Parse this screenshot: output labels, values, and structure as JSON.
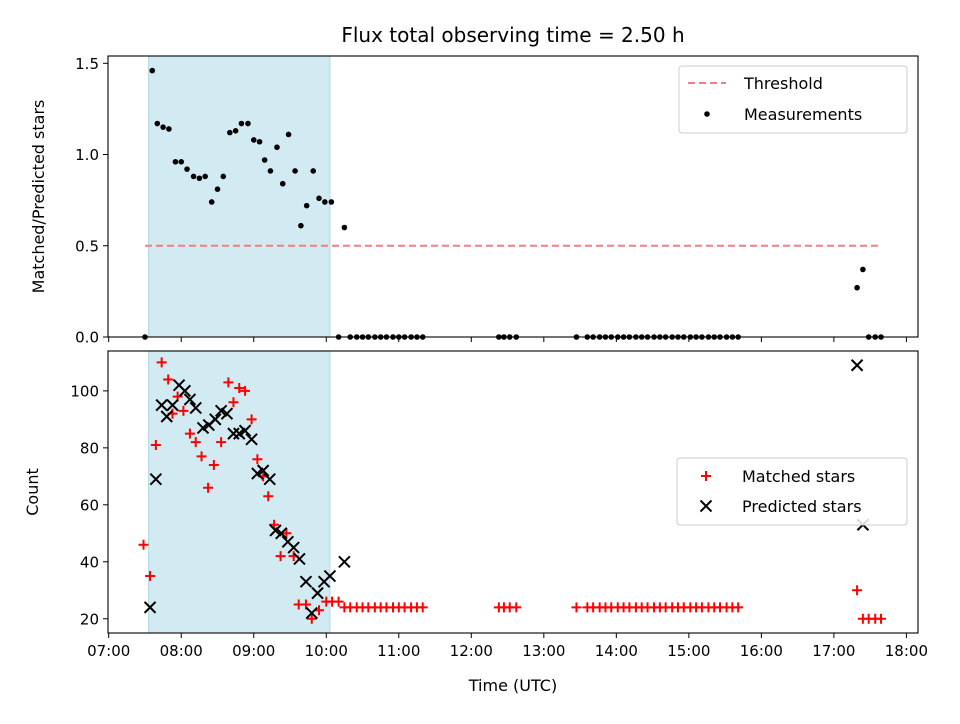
{
  "chart_data": [
    {
      "type": "scatter",
      "title": "Flux total observing time = 2.50 h",
      "xlabel": "",
      "ylabel": "Matched/Predicted stars",
      "xlim": [
        6.99,
        18.16
      ],
      "ylim": [
        0,
        1.54
      ],
      "yticks": [
        "0.0",
        "0.5",
        "1.0",
        "1.5"
      ],
      "grid": false,
      "legend_position": "top-right",
      "shaded_region": {
        "x_start": 7.55,
        "x_end": 10.05,
        "color": "#add8e6"
      },
      "threshold": {
        "name": "Threshold",
        "y": 0.5,
        "x_start": 7.5,
        "x_end": 17.65,
        "color": "#f08080"
      },
      "series": [
        {
          "name": "Measurements",
          "color": "#000000",
          "points": [
            [
              7.5,
              0.0
            ],
            [
              7.6,
              1.46
            ],
            [
              7.67,
              1.17
            ],
            [
              7.75,
              1.15
            ],
            [
              7.83,
              1.14
            ],
            [
              7.92,
              0.96
            ],
            [
              8.0,
              0.96
            ],
            [
              8.08,
              0.92
            ],
            [
              8.17,
              0.88
            ],
            [
              8.25,
              0.87
            ],
            [
              8.33,
              0.88
            ],
            [
              8.42,
              0.74
            ],
            [
              8.5,
              0.81
            ],
            [
              8.58,
              0.88
            ],
            [
              8.67,
              1.12
            ],
            [
              8.75,
              1.13
            ],
            [
              8.83,
              1.17
            ],
            [
              8.92,
              1.17
            ],
            [
              9.0,
              1.08
            ],
            [
              9.08,
              1.07
            ],
            [
              9.15,
              0.97
            ],
            [
              9.23,
              0.91
            ],
            [
              9.32,
              1.04
            ],
            [
              9.4,
              0.84
            ],
            [
              9.48,
              1.11
            ],
            [
              9.57,
              0.91
            ],
            [
              9.65,
              0.61
            ],
            [
              9.73,
              0.72
            ],
            [
              9.82,
              0.91
            ],
            [
              9.9,
              0.76
            ],
            [
              9.98,
              0.74
            ],
            [
              10.07,
              0.74
            ],
            [
              10.17,
              0.0
            ],
            [
              10.25,
              0.6
            ],
            [
              10.33,
              0.0
            ],
            [
              10.42,
              0.0
            ],
            [
              10.5,
              0.0
            ],
            [
              10.58,
              0.0
            ],
            [
              10.67,
              0.0
            ],
            [
              10.75,
              0.0
            ],
            [
              10.83,
              0.0
            ],
            [
              10.92,
              0.0
            ],
            [
              11.0,
              0.0
            ],
            [
              11.08,
              0.0
            ],
            [
              11.17,
              0.0
            ],
            [
              11.25,
              0.0
            ],
            [
              11.33,
              0.0
            ],
            [
              12.38,
              0.0
            ],
            [
              12.45,
              0.0
            ],
            [
              12.53,
              0.0
            ],
            [
              12.62,
              0.0
            ],
            [
              13.45,
              0.0
            ],
            [
              13.6,
              0.0
            ],
            [
              13.68,
              0.0
            ],
            [
              13.77,
              0.0
            ],
            [
              13.85,
              0.0
            ],
            [
              13.93,
              0.0
            ],
            [
              14.02,
              0.0
            ],
            [
              14.1,
              0.0
            ],
            [
              14.18,
              0.0
            ],
            [
              14.27,
              0.0
            ],
            [
              14.35,
              0.0
            ],
            [
              14.43,
              0.0
            ],
            [
              14.52,
              0.0
            ],
            [
              14.6,
              0.0
            ],
            [
              14.68,
              0.0
            ],
            [
              14.77,
              0.0
            ],
            [
              14.85,
              0.0
            ],
            [
              14.93,
              0.0
            ],
            [
              15.02,
              0.0
            ],
            [
              15.1,
              0.0
            ],
            [
              15.18,
              0.0
            ],
            [
              15.27,
              0.0
            ],
            [
              15.35,
              0.0
            ],
            [
              15.43,
              0.0
            ],
            [
              15.52,
              0.0
            ],
            [
              15.6,
              0.0
            ],
            [
              15.68,
              0.0
            ],
            [
              17.32,
              0.27
            ],
            [
              17.4,
              0.37
            ],
            [
              17.48,
              0.0
            ],
            [
              17.57,
              0.0
            ],
            [
              17.65,
              0.0
            ]
          ]
        }
      ]
    },
    {
      "type": "scatter",
      "title": "",
      "xlabel": "Time (UTC)",
      "ylabel": "Count",
      "xlim": [
        6.99,
        18.16
      ],
      "ylim": [
        15,
        114
      ],
      "xticks": [
        "07:00",
        "08:00",
        "09:00",
        "10:00",
        "11:00",
        "12:00",
        "13:00",
        "14:00",
        "15:00",
        "16:00",
        "17:00",
        "18:00"
      ],
      "yticks": [
        "20",
        "40",
        "60",
        "80",
        "100"
      ],
      "grid": false,
      "legend_position": "center-right",
      "shaded_region": {
        "x_start": 7.55,
        "x_end": 10.05,
        "color": "#add8e6"
      },
      "series": [
        {
          "name": "Matched stars",
          "marker": "plus",
          "color": "#ff0000",
          "points": [
            [
              7.48,
              46
            ],
            [
              7.57,
              35
            ],
            [
              7.65,
              81
            ],
            [
              7.73,
              110
            ],
            [
              7.82,
              104
            ],
            [
              7.88,
              92
            ],
            [
              7.95,
              98
            ],
            [
              8.03,
              93
            ],
            [
              8.12,
              85
            ],
            [
              8.2,
              82
            ],
            [
              8.28,
              77
            ],
            [
              8.37,
              66
            ],
            [
              8.45,
              74
            ],
            [
              8.55,
              82
            ],
            [
              8.65,
              103
            ],
            [
              8.72,
              96
            ],
            [
              8.8,
              101
            ],
            [
              8.88,
              100
            ],
            [
              8.97,
              90
            ],
            [
              9.05,
              76
            ],
            [
              9.13,
              70
            ],
            [
              9.2,
              63
            ],
            [
              9.28,
              53
            ],
            [
              9.37,
              42
            ],
            [
              9.45,
              50
            ],
            [
              9.55,
              42
            ],
            [
              9.62,
              25
            ],
            [
              9.72,
              25
            ],
            [
              9.8,
              20
            ],
            [
              9.9,
              23
            ],
            [
              10.0,
              26
            ],
            [
              10.08,
              26
            ],
            [
              10.17,
              26
            ],
            [
              10.25,
              24
            ],
            [
              10.33,
              24
            ],
            [
              10.42,
              24
            ],
            [
              10.5,
              24
            ],
            [
              10.58,
              24
            ],
            [
              10.67,
              24
            ],
            [
              10.75,
              24
            ],
            [
              10.83,
              24
            ],
            [
              10.92,
              24
            ],
            [
              11.0,
              24
            ],
            [
              11.08,
              24
            ],
            [
              11.17,
              24
            ],
            [
              11.25,
              24
            ],
            [
              11.33,
              24
            ],
            [
              12.38,
              24
            ],
            [
              12.45,
              24
            ],
            [
              12.53,
              24
            ],
            [
              12.62,
              24
            ],
            [
              13.45,
              24
            ],
            [
              13.6,
              24
            ],
            [
              13.68,
              24
            ],
            [
              13.77,
              24
            ],
            [
              13.85,
              24
            ],
            [
              13.93,
              24
            ],
            [
              14.02,
              24
            ],
            [
              14.1,
              24
            ],
            [
              14.18,
              24
            ],
            [
              14.27,
              24
            ],
            [
              14.35,
              24
            ],
            [
              14.43,
              24
            ],
            [
              14.52,
              24
            ],
            [
              14.6,
              24
            ],
            [
              14.68,
              24
            ],
            [
              14.77,
              24
            ],
            [
              14.85,
              24
            ],
            [
              14.93,
              24
            ],
            [
              15.02,
              24
            ],
            [
              15.1,
              24
            ],
            [
              15.18,
              24
            ],
            [
              15.27,
              24
            ],
            [
              15.35,
              24
            ],
            [
              15.43,
              24
            ],
            [
              15.52,
              24
            ],
            [
              15.6,
              24
            ],
            [
              15.68,
              24
            ],
            [
              17.32,
              30
            ],
            [
              17.4,
              20
            ],
            [
              17.48,
              20
            ],
            [
              17.57,
              20
            ],
            [
              17.65,
              20
            ]
          ]
        },
        {
          "name": "Predicted stars",
          "marker": "x",
          "color": "#000000",
          "points": [
            [
              7.57,
              24
            ],
            [
              7.65,
              69
            ],
            [
              7.73,
              95
            ],
            [
              7.8,
              91
            ],
            [
              7.88,
              95
            ],
            [
              7.97,
              102
            ],
            [
              8.05,
              100
            ],
            [
              8.12,
              97
            ],
            [
              8.2,
              94
            ],
            [
              8.3,
              87
            ],
            [
              8.38,
              88
            ],
            [
              8.47,
              90
            ],
            [
              8.55,
              93
            ],
            [
              8.63,
              92
            ],
            [
              8.72,
              85
            ],
            [
              8.8,
              85
            ],
            [
              8.88,
              86
            ],
            [
              8.97,
              83
            ],
            [
              9.05,
              71
            ],
            [
              9.13,
              72
            ],
            [
              9.22,
              69
            ],
            [
              9.3,
              51
            ],
            [
              9.38,
              50
            ],
            [
              9.47,
              47
            ],
            [
              9.55,
              45
            ],
            [
              9.63,
              41
            ],
            [
              9.72,
              33
            ],
            [
              9.8,
              22
            ],
            [
              9.88,
              29
            ],
            [
              9.97,
              33
            ],
            [
              10.05,
              35
            ],
            [
              10.25,
              40
            ],
            [
              17.32,
              109
            ],
            [
              17.4,
              53
            ]
          ]
        }
      ]
    }
  ]
}
